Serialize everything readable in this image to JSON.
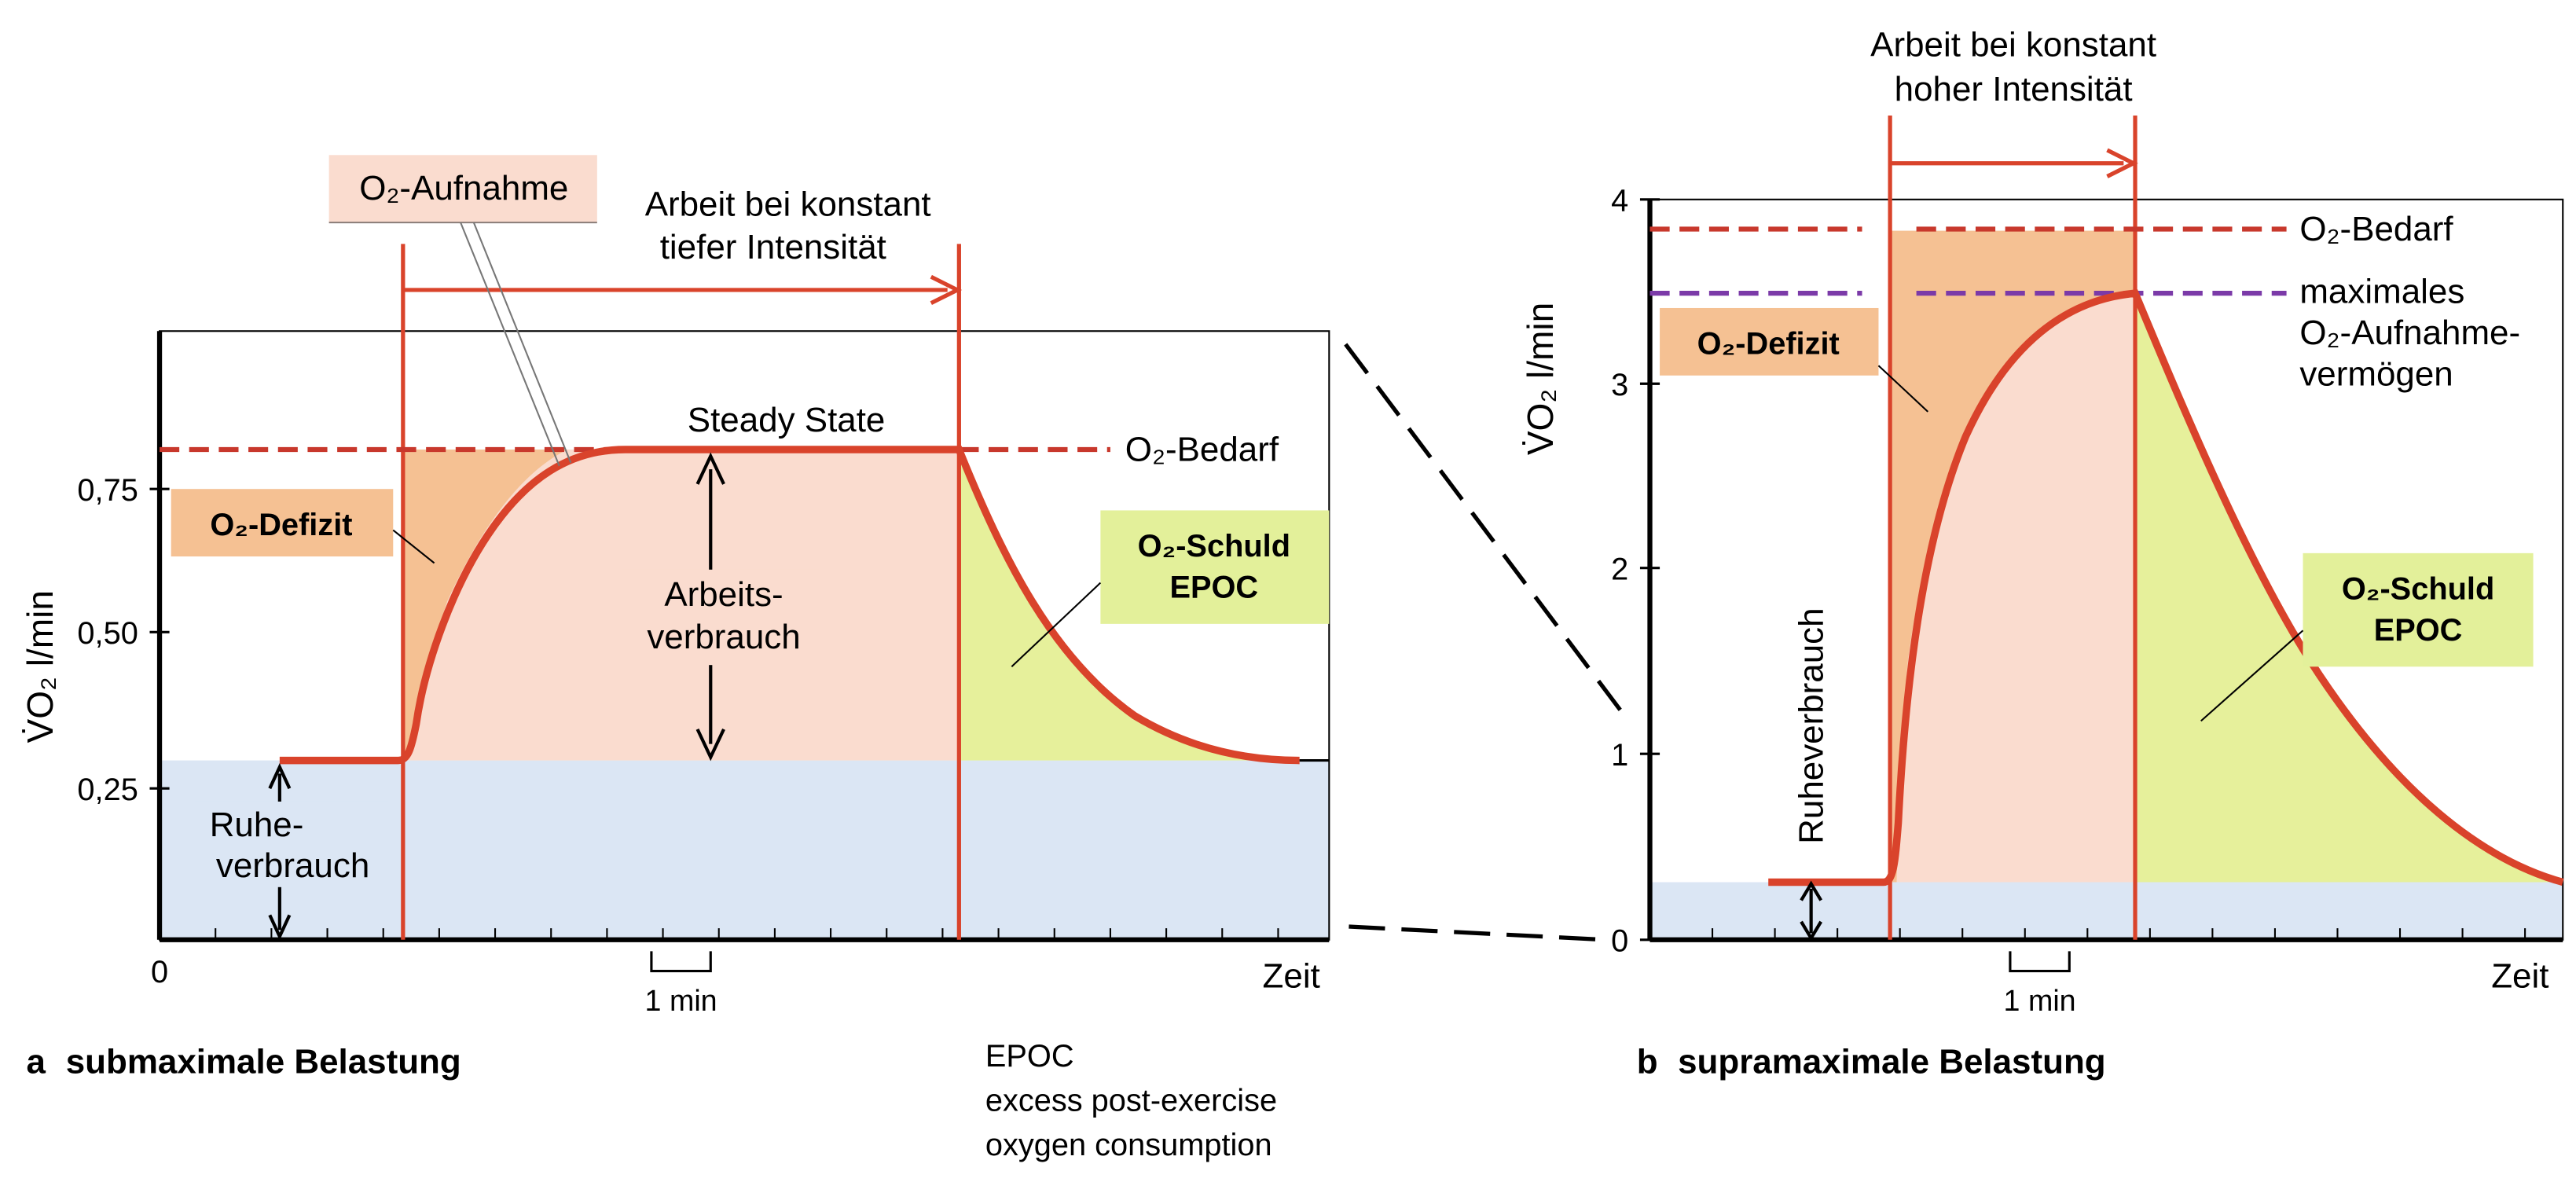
{
  "colors": {
    "curve": "#d9432b",
    "bedarf_line": "#c8382c",
    "max_line": "#7b3aa8",
    "rest_fill": "#dbe6f4",
    "work_fill": "#fadccf",
    "deficit_fill": "#f5c193",
    "epoc_fill": "#e6f09b",
    "deficit_label_bg": "#f5c193",
    "epoc_label_bg": "#e3f09a",
    "aufnahme_label_bg": "#fadccf",
    "axis": "#000000"
  },
  "panel_a": {
    "caption_letter": "a",
    "caption": "submaximale Belastung",
    "y_axis_label": "V̇O₂ l/min",
    "y_ticks": [
      "0,25",
      "0,50",
      "0,75"
    ],
    "x_origin": "0",
    "x_label": "Zeit",
    "minute_label": "1 min",
    "work_label_line1": "Arbeit bei konstant",
    "work_label_line2": "tiefer Intensität",
    "aufnahme_label": "O₂-Aufnahme",
    "steady_state_label": "Steady State",
    "bedarf_label": "O₂-Bedarf",
    "deficit_label": "O₂-Defizit",
    "schuld_label_line1": "O₂-Schuld",
    "schuld_label_line2": "EPOC",
    "arbeits_label_line1": "Arbeits-",
    "arbeits_label_line2": "verbrauch",
    "ruhe_label_line1": "Ruhe-",
    "ruhe_label_line2": "verbrauch"
  },
  "panel_b": {
    "caption_letter": "b",
    "caption": "supramaximale Belastung",
    "y_axis_label": "V̇O₂ l/min",
    "y_ticks": [
      "0",
      "1",
      "2",
      "3",
      "4"
    ],
    "x_label": "Zeit",
    "minute_label": "1 min",
    "work_label_line1": "Arbeit bei konstant",
    "work_label_line2": "hoher Intensität",
    "bedarf_label": "O₂-Bedarf",
    "max_label_line1": "maximales",
    "max_label_line2": "O₂-Aufnahme-",
    "max_label_line3": "vermögen",
    "deficit_label": "O₂-Defizit",
    "schuld_label_line1": "O₂-Schuld",
    "schuld_label_line2": "EPOC",
    "ruhe_label": "Ruheverbrauch"
  },
  "footnote": {
    "line1": "EPOC",
    "line2": "excess post-exercise",
    "line3": "oxygen consumption"
  }
}
